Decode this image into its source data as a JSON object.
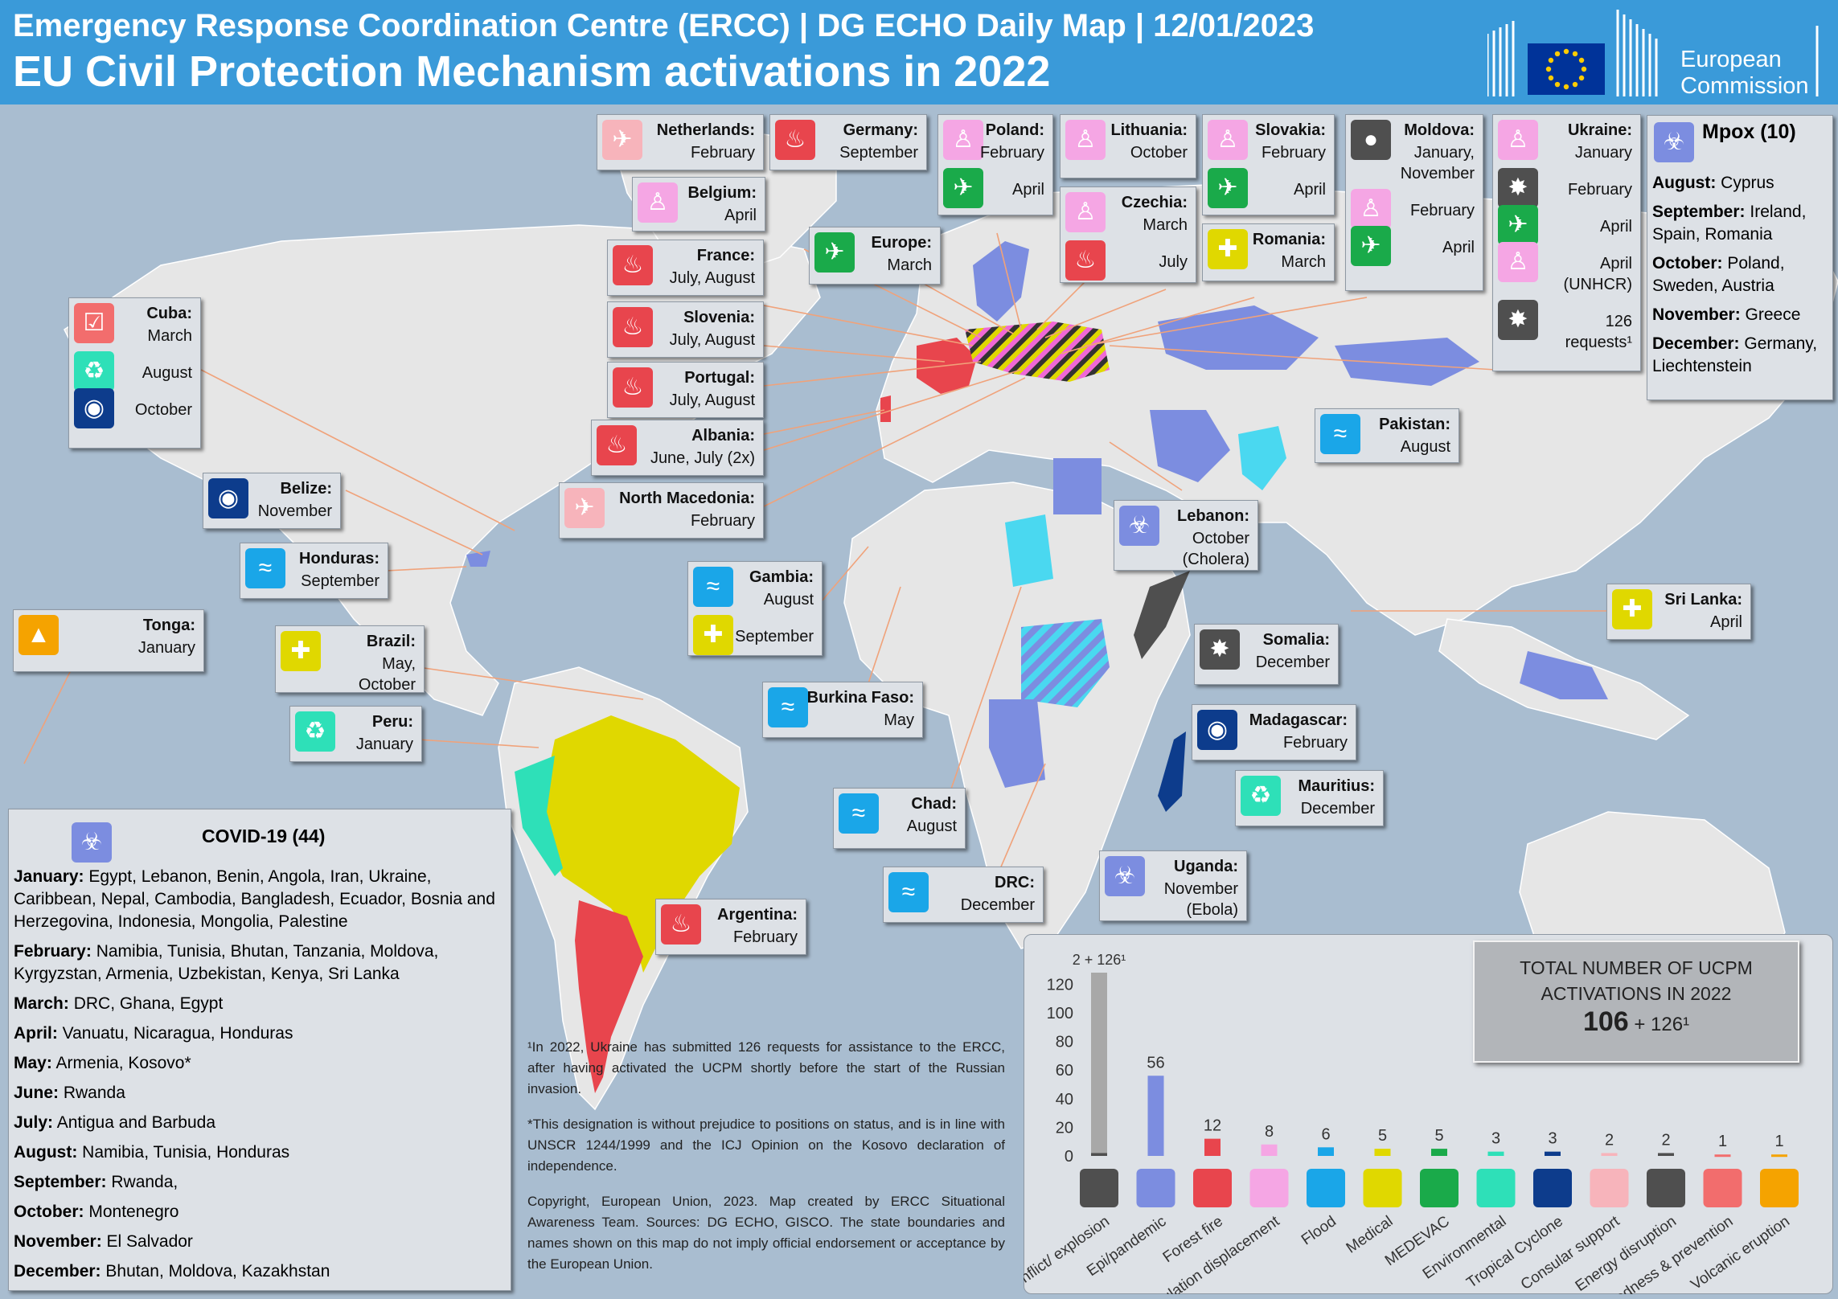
{
  "header": {
    "line1": "Emergency Response Coordination Centre (ERCC) | DG ECHO Daily Map | 12/01/2023",
    "line2": "EU Civil Protection Mechanism activations in 2022",
    "org_line1": "European",
    "org_line2": "Commission"
  },
  "colors": {
    "ocean": "#a9bdd0",
    "land": "#e6e6e6",
    "fire": "#e8454d",
    "displacement": "#f5a6e4",
    "medevac": "#1aaa4a",
    "consular": "#f7b4bb",
    "flood": "#1aa6e8",
    "medical": "#e0d800",
    "environmental": "#2ee0b8",
    "cyclone": "#0d3c8c",
    "conflict": "#4f4f4f",
    "energy": "#4f4f4f",
    "preparedness": "#f26d6d",
    "volcano": "#f5a300",
    "epidemic": "#7c8de0",
    "header": "#3a9ad9"
  },
  "callouts": [
    {
      "id": "netherlands",
      "name": "Netherlands:",
      "rows": [
        {
          "icon": "consular-plane-icon",
          "type": "consular",
          "text": "February"
        }
      ]
    },
    {
      "id": "germany",
      "name": "Germany:",
      "rows": [
        {
          "icon": "fire-icon",
          "type": "fire",
          "text": "September"
        }
      ]
    },
    {
      "id": "poland",
      "name": "Poland:",
      "rows": [
        {
          "icon": "displacement-icon",
          "type": "disp",
          "text": "February"
        },
        {
          "icon": "medevac-icon",
          "type": "medevac",
          "text": "April"
        }
      ]
    },
    {
      "id": "lithuania",
      "name": "Lithuania:",
      "rows": [
        {
          "icon": "displacement-icon",
          "type": "disp",
          "text": "October"
        }
      ]
    },
    {
      "id": "slovakia",
      "name": "Slovakia:",
      "rows": [
        {
          "icon": "displacement-icon",
          "type": "disp",
          "text": "February"
        },
        {
          "icon": "medevac-icon",
          "type": "medevac",
          "text": "April"
        }
      ]
    },
    {
      "id": "moldova",
      "name": "Moldova:",
      "rows": [
        {
          "icon": "energy-icon",
          "type": "energy",
          "text": "January,"
        },
        {
          "icon": "",
          "type": "",
          "text": "November"
        },
        {
          "icon": "displacement-icon",
          "type": "disp",
          "text": "February"
        },
        {
          "icon": "medevac-icon",
          "type": "medevac",
          "text": "April"
        }
      ]
    },
    {
      "id": "ukraine",
      "name": "Ukraine:",
      "rows": [
        {
          "icon": "displacement-icon",
          "type": "disp",
          "text": "January"
        },
        {
          "icon": "conflict-icon",
          "type": "conflict",
          "text": "February"
        },
        {
          "icon": "medevac-icon",
          "type": "medevac",
          "text": "April"
        },
        {
          "icon": "displacement-icon",
          "type": "disp",
          "text": "April"
        },
        {
          "icon": "",
          "type": "",
          "text": "(UNHCR)"
        },
        {
          "icon": "conflict-icon",
          "type": "conflict",
          "text": "126"
        },
        {
          "icon": "",
          "type": "",
          "text": "requests¹"
        }
      ]
    },
    {
      "id": "belgium",
      "name": "Belgium:",
      "rows": [
        {
          "icon": "displacement-icon",
          "type": "disp",
          "text": "April"
        }
      ]
    },
    {
      "id": "europe",
      "name": "Europe:",
      "rows": [
        {
          "icon": "medevac-icon",
          "type": "medevac",
          "text": "March"
        }
      ]
    },
    {
      "id": "czechia",
      "name": "Czechia:",
      "rows": [
        {
          "icon": "displacement-icon",
          "type": "disp",
          "text": "March"
        },
        {
          "icon": "fire-icon",
          "type": "fire",
          "text": "July"
        }
      ]
    },
    {
      "id": "romania",
      "name": "Romania:",
      "rows": [
        {
          "icon": "medical-icon",
          "type": "medical",
          "text": "March"
        }
      ]
    },
    {
      "id": "france",
      "name": "France:",
      "rows": [
        {
          "icon": "fire-icon",
          "type": "fire",
          "text": "July, August"
        }
      ]
    },
    {
      "id": "slovenia",
      "name": "Slovenia:",
      "rows": [
        {
          "icon": "fire-icon",
          "type": "fire",
          "text": "July, August"
        }
      ]
    },
    {
      "id": "portugal",
      "name": "Portugal:",
      "rows": [
        {
          "icon": "fire-icon",
          "type": "fire",
          "text": "July, August"
        }
      ]
    },
    {
      "id": "albania",
      "name": "Albania:",
      "rows": [
        {
          "icon": "fire-icon",
          "type": "fire",
          "text": "June, July (2x)"
        }
      ]
    },
    {
      "id": "northmacedonia",
      "name": "North Macedonia:",
      "rows": [
        {
          "icon": "consular-plane-icon",
          "type": "consular",
          "text": "February"
        }
      ]
    },
    {
      "id": "cuba",
      "name": "Cuba:",
      "rows": [
        {
          "icon": "preparedness-icon",
          "type": "prep",
          "text": "March"
        },
        {
          "icon": "environmental-icon",
          "type": "env",
          "text": "August"
        },
        {
          "icon": "cyclone-icon",
          "type": "cyclone",
          "text": "October"
        }
      ]
    },
    {
      "id": "belize",
      "name": "Belize:",
      "rows": [
        {
          "icon": "cyclone-icon",
          "type": "cyclone",
          "text": "November"
        }
      ]
    },
    {
      "id": "honduras",
      "name": "Honduras:",
      "rows": [
        {
          "icon": "flood-icon",
          "type": "flood",
          "text": "September"
        }
      ]
    },
    {
      "id": "tonga",
      "name": "Tonga:",
      "rows": [
        {
          "icon": "volcano-icon",
          "type": "volcano",
          "text": "January"
        }
      ]
    },
    {
      "id": "brazil",
      "name": "Brazil:",
      "rows": [
        {
          "icon": "medical-icon",
          "type": "medical",
          "text": "May,"
        },
        {
          "icon": "",
          "type": "",
          "text": "October"
        }
      ]
    },
    {
      "id": "peru",
      "name": "Peru:",
      "rows": [
        {
          "icon": "environmental-icon",
          "type": "env",
          "text": "January"
        }
      ]
    },
    {
      "id": "gambia",
      "name": "Gambia:",
      "rows": [
        {
          "icon": "flood-icon",
          "type": "flood",
          "text": "August"
        },
        {
          "icon": "medical-icon",
          "type": "medical",
          "text": "September"
        }
      ]
    },
    {
      "id": "burkinafaso",
      "name": "Burkina Faso:",
      "rows": [
        {
          "icon": "flood-icon",
          "type": "flood",
          "text": "May"
        }
      ]
    },
    {
      "id": "chad",
      "name": "Chad:",
      "rows": [
        {
          "icon": "flood-icon",
          "type": "flood",
          "text": "August"
        }
      ]
    },
    {
      "id": "drc",
      "name": "DRC:",
      "rows": [
        {
          "icon": "flood-icon",
          "type": "flood",
          "text": "December"
        }
      ]
    },
    {
      "id": "argentina",
      "name": "Argentina:",
      "rows": [
        {
          "icon": "fire-icon",
          "type": "fire",
          "text": "February"
        }
      ]
    },
    {
      "id": "pakistan",
      "name": "Pakistan:",
      "rows": [
        {
          "icon": "flood-icon",
          "type": "flood",
          "text": "August"
        }
      ]
    },
    {
      "id": "lebanon",
      "name": "Lebanon:",
      "rows": [
        {
          "icon": "epidemic-icon",
          "type": "epi",
          "text": "October"
        },
        {
          "icon": "",
          "type": "",
          "text": "(Cholera)"
        }
      ]
    },
    {
      "id": "srilanka",
      "name": "Sri Lanka:",
      "rows": [
        {
          "icon": "medical-icon",
          "type": "medical",
          "text": "April"
        }
      ]
    },
    {
      "id": "somalia",
      "name": "Somalia:",
      "rows": [
        {
          "icon": "conflict-icon",
          "type": "conflict",
          "text": "December"
        }
      ]
    },
    {
      "id": "madagascar",
      "name": "Madagascar:",
      "rows": [
        {
          "icon": "cyclone-icon",
          "type": "cyclone",
          "text": "February"
        }
      ]
    },
    {
      "id": "mauritius",
      "name": "Mauritius:",
      "rows": [
        {
          "icon": "environmental-icon",
          "type": "env",
          "text": "December"
        }
      ]
    },
    {
      "id": "uganda",
      "name": "Uganda:",
      "rows": [
        {
          "icon": "epidemic-icon",
          "type": "epi",
          "text": "November"
        },
        {
          "icon": "",
          "type": "",
          "text": "(Ebola)"
        }
      ]
    }
  ],
  "covid": {
    "title": "COVID-19 (44)",
    "lines": [
      {
        "month": "January:",
        "text": " Egypt, Lebanon, Benin, Angola, Iran, Ukraine, Caribbean, Nepal, Cambodia, Bangladesh, Ecuador, Bosnia and Herzegovina, Indonesia, Mongolia, Palestine"
      },
      {
        "month": "February:",
        "text": " Namibia, Tunisia, Bhutan, Tanzania, Moldova, Kyrgyzstan, Armenia, Uzbekistan, Kenya, Sri Lanka"
      },
      {
        "month": "March:",
        "text": " DRC, Ghana, Egypt"
      },
      {
        "month": "April:",
        "text": " Vanuatu, Nicaragua, Honduras"
      },
      {
        "month": "May:",
        "text": " Armenia, Kosovo*"
      },
      {
        "month": "June:",
        "text": " Rwanda"
      },
      {
        "month": "July:",
        "text": " Antigua and Barbuda"
      },
      {
        "month": "August:",
        "text": " Namibia, Tunisia, Honduras"
      },
      {
        "month": "September:",
        "text": " Rwanda,"
      },
      {
        "month": "October:",
        "text": " Montenegro"
      },
      {
        "month": "November:",
        "text": " El Salvador"
      },
      {
        "month": "December:",
        "text": " Bhutan, Moldova, Kazakhstan"
      }
    ]
  },
  "mpox": {
    "title": "Mpox (10)",
    "lines": [
      {
        "month": "August:",
        "text": " Cyprus"
      },
      {
        "month": "September:",
        "text": " Ireland, Spain, Romania"
      },
      {
        "month": "October:",
        "text": " Poland, Sweden, Austria"
      },
      {
        "month": "November:",
        "text": " Greece"
      },
      {
        "month": "December:",
        "text": " Germany, Liechtenstein"
      }
    ]
  },
  "notes": {
    "n1": "¹In 2022, Ukraine has submitted 126 requests for assistance to the ERCC, after having activated the UCPM shortly before the start of the Russian invasion.",
    "n2": "*This designation is without prejudice to positions on status, and is in line with UNSCR 1244/1999 and the ICJ Opinion on the Kosovo declaration of independence.",
    "n3": "Copyright, European Union, 2023. Map created by ERCC Situational Awareness Team. Sources: DG ECHO, GISCO. The state boundaries and names shown on this map do not imply official endorsement or acceptance by the European Union."
  },
  "total": {
    "title_line1": "TOTAL NUMBER  OF UCPM",
    "title_line2": "ACTIVATIONS  IN 2022",
    "value": "106",
    "suffix": " + 126¹"
  },
  "chart_data": {
    "type": "bar",
    "categories": [
      "Conflict/ explosion",
      "Epi/pandemic",
      "Forest fire",
      "Population displacement",
      "Flood",
      "Medical",
      "MEDEVAC",
      "Environmental",
      "Tropical Cyclone",
      "Consular support",
      "Energy disruption",
      "Preparedness & prevention",
      "Volcanic eruption"
    ],
    "values": [
      2,
      56,
      12,
      8,
      6,
      5,
      5,
      3,
      3,
      2,
      2,
      1,
      1
    ],
    "data_labels": [
      "2 + 126¹",
      "56",
      "12",
      "8",
      "6",
      "5",
      "5",
      "3",
      "3",
      "2",
      "2",
      "1",
      "1"
    ],
    "colors": [
      "#4f4f4f",
      "#7c8de0",
      "#e8454d",
      "#f5a6e4",
      "#1aa6e8",
      "#e0d800",
      "#1aaa4a",
      "#2ee0b8",
      "#0d3c8c",
      "#f7b4bb",
      "#4f4f4f",
      "#f26d6d",
      "#f5a300"
    ],
    "icons": [
      "conflict-icon",
      "epidemic-icon",
      "fire-icon",
      "displacement-icon",
      "flood-icon",
      "medical-icon",
      "medevac-icon",
      "environmental-icon",
      "cyclone-icon",
      "consular-plane-icon",
      "energy-icon",
      "preparedness-icon",
      "volcano-icon"
    ],
    "conflict_ukraine_extra": 126,
    "yticks": [
      "0",
      "20",
      "40",
      "60",
      "80",
      "100",
      "120"
    ],
    "ylim": [
      0,
      128
    ],
    "grid": false
  }
}
